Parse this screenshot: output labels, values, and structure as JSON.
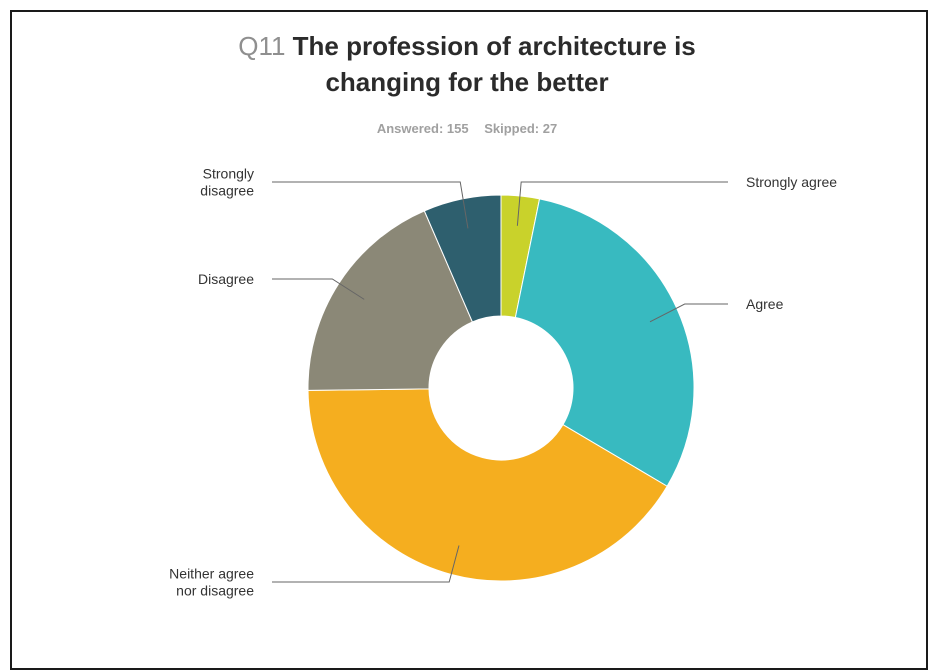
{
  "header": {
    "question_number": "Q11",
    "title_line1": "The profession of architecture is",
    "title_line2": "changing for the better",
    "answered": "Answered: 155",
    "skipped": "Skipped: 27"
  },
  "chart_data": {
    "type": "pie",
    "style": "donut",
    "grid": false,
    "legend": "none",
    "slices": [
      {
        "label": "Strongly agree",
        "value": 3.2,
        "color": "#c9d22b",
        "label_lines": [
          "Strongly agree"
        ]
      },
      {
        "label": "Agree",
        "value": 30.3,
        "color": "#38bac0",
        "label_lines": [
          "Agree"
        ]
      },
      {
        "label": "Neither agree nor disagree",
        "value": 41.3,
        "color": "#f5ae1f",
        "label_lines": [
          "Neither agree",
          "nor disagree"
        ]
      },
      {
        "label": "Disagree",
        "value": 18.7,
        "color": "#8b8877",
        "label_lines": [
          "Disagree"
        ]
      },
      {
        "label": "Strongly disagree",
        "value": 6.5,
        "color": "#2e5f6e",
        "label_lines": [
          "Strongly",
          "disagree"
        ]
      }
    ]
  }
}
